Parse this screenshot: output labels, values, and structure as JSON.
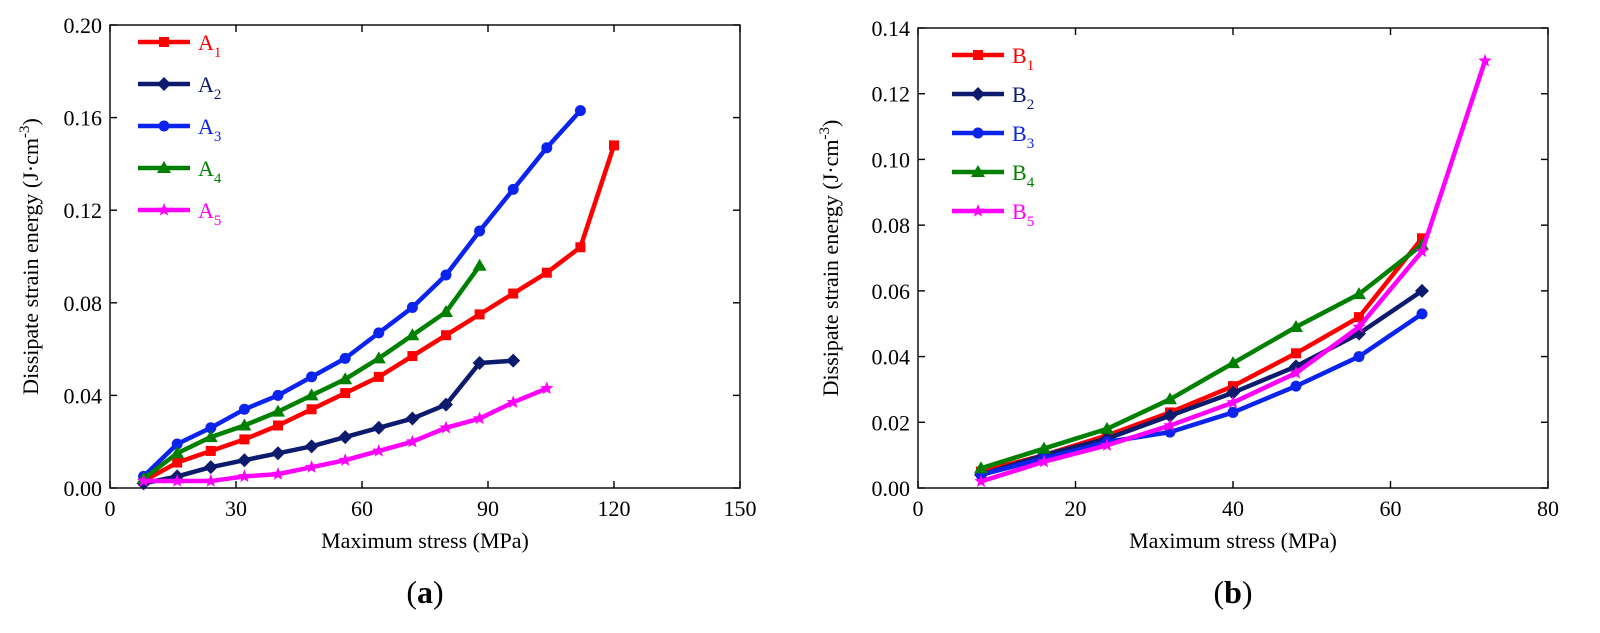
{
  "chart_data": [
    {
      "type": "line",
      "panel_label": "(a)",
      "panel_letter": "a",
      "xlabel": "Maximum stress (MPa)",
      "ylabel": "Dissipate strain energy (J·cm-3)",
      "ylabel_main": "Dissipate strain energy (J·cm",
      "ylabel_exp": "-3",
      "ylabel_close": ")",
      "xlim": [
        0,
        150
      ],
      "ylim": [
        0,
        0.2
      ],
      "xticks": [
        0,
        30,
        60,
        90,
        120,
        150
      ],
      "yticks": [
        0,
        0.04,
        0.08,
        0.12,
        0.16,
        0.2
      ],
      "xtick_labels": [
        "0",
        "30",
        "60",
        "90",
        "120",
        "150"
      ],
      "ytick_labels": [
        "0.00",
        "0.04",
        "0.08",
        "0.12",
        "0.16",
        "0.20"
      ],
      "legend_position": "top-left",
      "series": [
        {
          "name": "A1",
          "base": "A",
          "sub": "1",
          "color": "#ff0000",
          "marker": "square",
          "x": [
            8,
            16,
            24,
            32,
            40,
            48,
            56,
            64,
            72,
            80,
            88,
            96,
            104,
            112,
            120
          ],
          "y": [
            0.003,
            0.011,
            0.016,
            0.021,
            0.027,
            0.034,
            0.041,
            0.048,
            0.057,
            0.066,
            0.075,
            0.084,
            0.093,
            0.104,
            0.148
          ]
        },
        {
          "name": "A2",
          "base": "A",
          "sub": "2",
          "color": "#0d1b6e",
          "marker": "diamond",
          "x": [
            8,
            16,
            24,
            32,
            40,
            48,
            56,
            64,
            72,
            80,
            88,
            96
          ],
          "y": [
            0.002,
            0.005,
            0.009,
            0.012,
            0.015,
            0.018,
            0.022,
            0.026,
            0.03,
            0.036,
            0.054,
            0.055
          ]
        },
        {
          "name": "A3",
          "base": "A",
          "sub": "3",
          "color": "#0a24ee",
          "marker": "circle",
          "x": [
            8,
            16,
            24,
            32,
            40,
            48,
            56,
            64,
            72,
            80,
            88,
            96,
            104,
            112
          ],
          "y": [
            0.005,
            0.019,
            0.026,
            0.034,
            0.04,
            0.048,
            0.056,
            0.067,
            0.078,
            0.092,
            0.111,
            0.129,
            0.147,
            0.163
          ]
        },
        {
          "name": "A4",
          "base": "A",
          "sub": "4",
          "color": "#008000",
          "marker": "triangle",
          "x": [
            8,
            16,
            24,
            32,
            40,
            48,
            56,
            64,
            72,
            80,
            88
          ],
          "y": [
            0.004,
            0.015,
            0.022,
            0.027,
            0.033,
            0.04,
            0.047,
            0.056,
            0.066,
            0.076,
            0.096
          ]
        },
        {
          "name": "A5",
          "base": "A",
          "sub": "5",
          "color": "#ff00ff",
          "marker": "star",
          "x": [
            8,
            16,
            24,
            32,
            40,
            48,
            56,
            64,
            72,
            80,
            88,
            96,
            104
          ],
          "y": [
            0.003,
            0.003,
            0.003,
            0.005,
            0.006,
            0.009,
            0.012,
            0.016,
            0.02,
            0.026,
            0.03,
            0.037,
            0.043
          ]
        }
      ]
    },
    {
      "type": "line",
      "panel_label": "(b)",
      "panel_letter": "b",
      "xlabel": "Maximum stress (MPa)",
      "ylabel": "Dissipate strain energy (J·cm-3)",
      "ylabel_main": "Dissipate strain energy (J·cm",
      "ylabel_exp": "-3",
      "ylabel_close": ")",
      "xlim": [
        0,
        80
      ],
      "ylim": [
        0,
        0.14
      ],
      "xticks": [
        0,
        20,
        40,
        60,
        80
      ],
      "yticks": [
        0,
        0.02,
        0.04,
        0.06,
        0.08,
        0.1,
        0.12,
        0.14
      ],
      "xtick_labels": [
        "0",
        "20",
        "40",
        "60",
        "80"
      ],
      "ytick_labels": [
        "0.00",
        "0.02",
        "0.04",
        "0.06",
        "0.08",
        "0.10",
        "0.12",
        "0.14"
      ],
      "legend_position": "top-left",
      "series": [
        {
          "name": "B1",
          "base": "B",
          "sub": "1",
          "color": "#ff0000",
          "marker": "square",
          "x": [
            8,
            16,
            24,
            32,
            40,
            48,
            56,
            64
          ],
          "y": [
            0.005,
            0.01,
            0.016,
            0.023,
            0.031,
            0.041,
            0.052,
            0.076
          ]
        },
        {
          "name": "B2",
          "base": "B",
          "sub": "2",
          "color": "#0d1b6e",
          "marker": "diamond",
          "x": [
            8,
            16,
            24,
            32,
            40,
            48,
            56,
            64
          ],
          "y": [
            0.004,
            0.01,
            0.015,
            0.022,
            0.029,
            0.037,
            0.047,
            0.06
          ]
        },
        {
          "name": "B3",
          "base": "B",
          "sub": "3",
          "color": "#0a24ee",
          "marker": "circle",
          "x": [
            8,
            16,
            24,
            32,
            40,
            48,
            56,
            64
          ],
          "y": [
            0.004,
            0.009,
            0.014,
            0.017,
            0.023,
            0.031,
            0.04,
            0.053
          ]
        },
        {
          "name": "B4",
          "base": "B",
          "sub": "4",
          "color": "#008000",
          "marker": "triangle",
          "x": [
            8,
            16,
            24,
            32,
            40,
            48,
            56,
            64
          ],
          "y": [
            0.006,
            0.012,
            0.018,
            0.027,
            0.038,
            0.049,
            0.059,
            0.074
          ]
        },
        {
          "name": "B5",
          "base": "B",
          "sub": "5",
          "color": "#ff00ff",
          "marker": "star",
          "x": [
            8,
            16,
            24,
            32,
            40,
            48,
            56,
            64,
            72
          ],
          "y": [
            0.002,
            0.008,
            0.013,
            0.019,
            0.026,
            0.035,
            0.049,
            0.072,
            0.13
          ]
        }
      ]
    }
  ]
}
